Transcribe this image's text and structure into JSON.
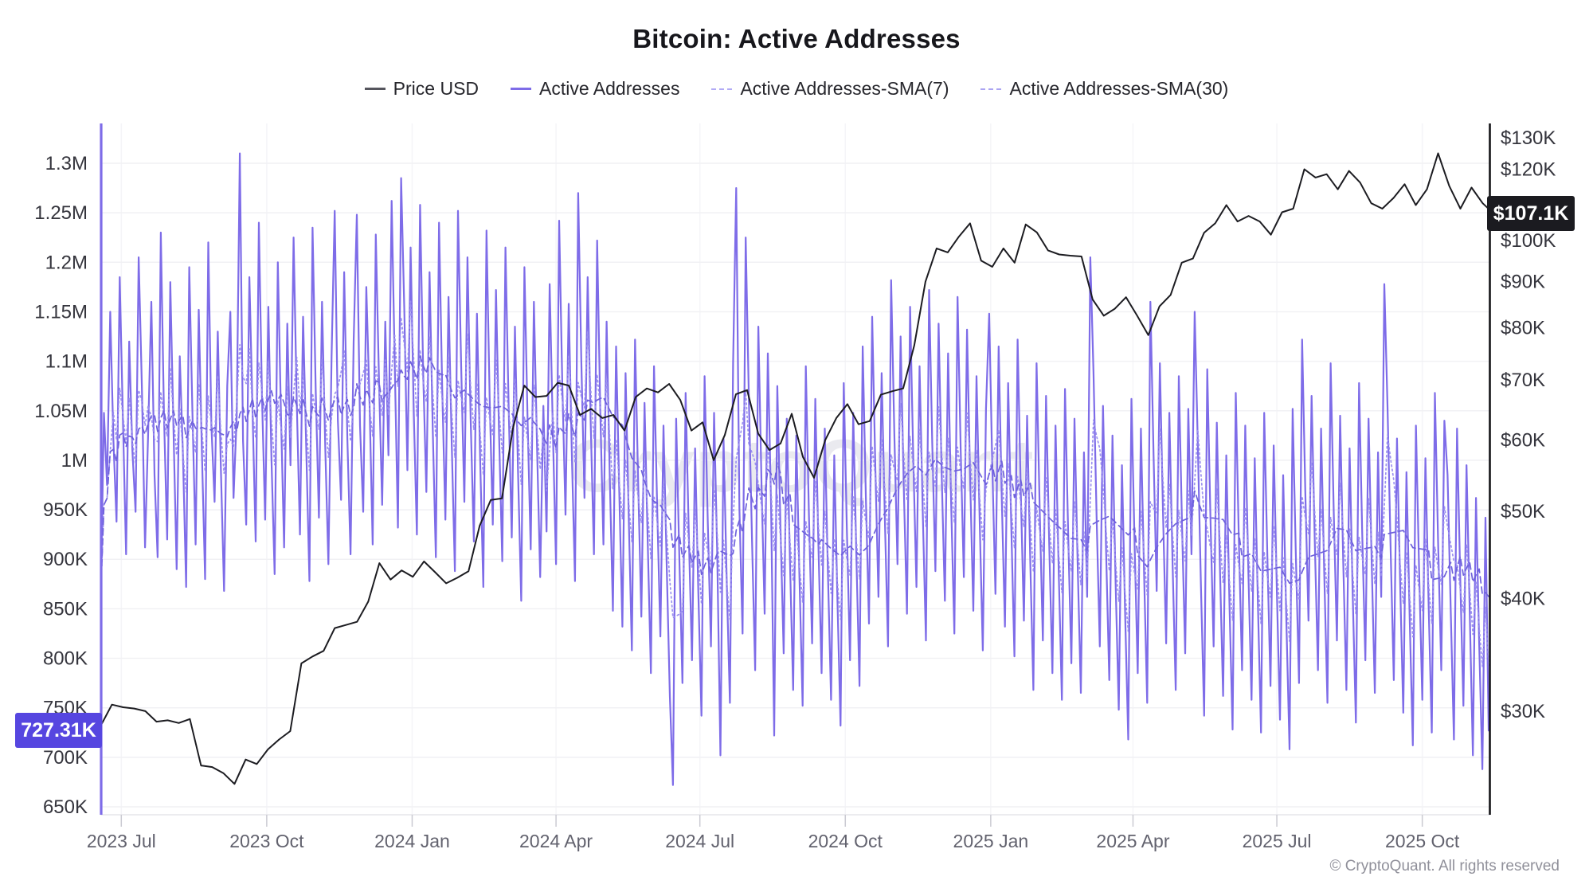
{
  "watermark": "CryptoQuant",
  "copyright": "© CryptoQuant. All rights reserved",
  "legend": {
    "items": [
      {
        "label": "Price USD",
        "swatch": "solid",
        "color": "#55555d"
      },
      {
        "label": "Active Addresses",
        "swatch": "solid",
        "color": "#7E6CE8"
      },
      {
        "label": "Active Addresses-SMA(7)",
        "swatch": "dashed",
        "color": "#b2abf5"
      },
      {
        "label": "Active Addresses-SMA(30)",
        "swatch": "dashed",
        "color": "#aba4f2"
      }
    ]
  },
  "annotations": {
    "left_axis_value": {
      "text": "727.31K",
      "bg": "#5646E0"
    },
    "right_axis_value": {
      "text": "$107.1K",
      "bg": "#1b1b20"
    }
  },
  "chart_data": {
    "type": "line",
    "title": "Bitcoin: Active Addresses",
    "grid": "horizontal-faint",
    "legend_position": "top",
    "x_axis": {
      "start_date": "2023-06-18",
      "end_date": "2025-11-14",
      "tick_labels": [
        "2023 Jul",
        "2023 Oct",
        "2024 Jan",
        "2024 Apr",
        "2024 Jul",
        "2024 Oct",
        "2025 Jan",
        "2025 Apr",
        "2025 Jul",
        "2025 Oct"
      ],
      "tick_days": [
        13,
        105,
        197,
        288,
        379,
        471,
        563,
        653,
        744,
        836
      ]
    },
    "left_axis": {
      "scale": "linear",
      "unit": "addresses",
      "tick_labels": [
        "650K",
        "700K",
        "750K",
        "800K",
        "850K",
        "900K",
        "950K",
        "1M",
        "1.05M",
        "1.1M",
        "1.15M",
        "1.2M",
        "1.25M",
        "1.3M"
      ],
      "tick_values_k": [
        650,
        700,
        750,
        800,
        850,
        900,
        950,
        1000,
        1050,
        1100,
        1150,
        1200,
        1250,
        1300
      ],
      "range_k": [
        650,
        1339
      ]
    },
    "right_axis": {
      "scale": "log",
      "unit": "USD",
      "tick_labels": [
        "$30K",
        "$40K",
        "$50K",
        "$60K",
        "$70K",
        "$80K",
        "$90K",
        "$100K",
        "$120K",
        "$130K"
      ],
      "tick_values_k": [
        30,
        40,
        50,
        60,
        70,
        80,
        90,
        100,
        120,
        130
      ]
    },
    "last_values": {
      "active_addresses_k": 727.31,
      "price_usd_k": 107.1
    },
    "series": [
      {
        "name": "Price USD",
        "axis": "right",
        "unit": "USD thousands",
        "color": "#1c1c21",
        "style": "solid",
        "x_start_day": 0,
        "x_day_step": 7.05,
        "values": [
          28.9,
          30.5,
          30.3,
          30.2,
          30.0,
          29.2,
          29.3,
          29.1,
          29.4,
          26.1,
          26.0,
          25.6,
          24.9,
          26.5,
          26.2,
          27.2,
          27.9,
          28.5,
          33.9,
          34.5,
          35.0,
          37.1,
          37.4,
          37.7,
          39.7,
          43.8,
          42.0,
          43.0,
          42.3,
          44.0,
          42.8,
          41.6,
          42.2,
          42.9,
          48.2,
          51.5,
          51.7,
          62.0,
          69.0,
          67.0,
          67.2,
          69.5,
          69.0,
          64.0,
          65.0,
          63.5,
          64.0,
          61.5,
          67.0,
          68.5,
          67.8,
          69.3,
          66.5,
          61.5,
          62.8,
          57.0,
          60.8,
          67.5,
          68.2,
          61.0,
          58.5,
          59.5,
          64.2,
          57.5,
          54.5,
          60.0,
          63.5,
          65.8,
          62.5,
          63.0,
          67.4,
          68.0,
          68.5,
          76.5,
          90.0,
          98.0,
          97.0,
          101.0,
          104.5,
          95.0,
          93.5,
          98.0,
          94.5,
          104.2,
          102.1,
          97.5,
          96.5,
          96.2,
          96.0,
          86.0,
          82.5,
          84.0,
          86.5,
          82.5,
          78.5,
          84.5,
          87.0,
          94.5,
          95.5,
          102.0,
          104.5,
          109.5,
          105.0,
          106.5,
          105.0,
          101.5,
          107.5,
          108.5,
          120.0,
          117.5,
          118.5,
          114.0,
          119.5,
          116.0,
          110.0,
          108.5,
          111.5,
          115.5,
          109.5,
          114.0,
          125.0,
          115.0,
          108.5,
          114.5,
          110.0,
          107.1
        ]
      },
      {
        "name": "Active Addresses",
        "axis": "left",
        "unit": "thousands",
        "color": "#7E6CE8",
        "style": "solid",
        "x_start_day": 0,
        "x_day_step": 2,
        "values": [
          862,
          1048,
          975,
          1150,
          1020,
          938,
          1185,
          1042,
          905,
          1120,
          1010,
          948,
          1205,
          1075,
          912,
          1028,
          1160,
          985,
          902,
          1230,
          1045,
          920,
          1180,
          1032,
          890,
          1105,
          1005,
          872,
          1195,
          1048,
          915,
          1152,
          1008,
          880,
          1220,
          1035,
          958,
          1130,
          992,
          868,
          1075,
          1150,
          962,
          1045,
          1310,
          1020,
          935,
          1185,
          1052,
          918,
          1240,
          1065,
          940,
          1155,
          1002,
          885,
          1200,
          1048,
          912,
          1138,
          995,
          1225,
          1058,
          925,
          1145,
          1012,
          878,
          1235,
          1070,
          942,
          1160,
          1015,
          895,
          1105,
          1252,
          1040,
          960,
          1190,
          1022,
          905,
          1120,
          1248,
          1035,
          948,
          1175,
          1060,
          915,
          1228,
          1082,
          955,
          1140,
          1005,
          1262,
          1098,
          932,
          1285,
          1152,
          990,
          1215,
          1048,
          925,
          1258,
          1085,
          968,
          1190,
          1032,
          902,
          1240,
          1072,
          940,
          1165,
          1018,
          888,
          1252,
          1095,
          958,
          1205,
          1042,
          918,
          1148,
          1002,
          872,
          1232,
          1065,
          935,
          1172,
          1025,
          898,
          1215,
          1058,
          922,
          1135,
          988,
          858,
          1195,
          1040,
          910,
          1160,
          1012,
          882,
          1055,
          928,
          1178,
          1030,
          895,
          1242,
          1075,
          945,
          1158,
          1008,
          878,
          1270,
          1102,
          962,
          1185,
          1035,
          905,
          1222,
          1052,
          915,
          1140,
          982,
          848,
          1115,
          968,
          832,
          1088,
          942,
          808,
          1122,
          975,
          842,
          1058,
          918,
          785,
          1095,
          952,
          822,
          1035,
          895,
          762,
          672,
          1042,
          902,
          775,
          1068,
          925,
          798,
          1012,
          868,
          742,
          1085,
          938,
          812,
          1048,
          905,
          702,
          1022,
          878,
          755,
          1098,
          1275,
          952,
          825,
          1225,
          1062,
          918,
          788,
          1135,
          975,
          845,
          1108,
          958,
          722,
          1075,
          932,
          805,
          1042,
          898,
          768,
          1025,
          882,
          752,
          1095,
          945,
          815,
          1062,
          915,
          785,
          1032,
          888,
          758,
          1005,
          862,
          732,
          1078,
          928,
          798,
          1048,
          902,
          772,
          1115,
          962,
          835,
          1145,
          992,
          862,
          1088,
          942,
          812,
          1182,
          1028,
          895,
          1125,
          972,
          845,
          1155,
          1002,
          872,
          1095,
          948,
          818,
          1172,
          1018,
          888,
          1138,
          985,
          858,
          1108,
          955,
          825,
          1165,
          1012,
          882,
          1132,
          978,
          848,
          1085,
          938,
          808,
          1052,
          1148,
          995,
          865,
          1115,
          962,
          832,
          1078,
          932,
          802,
          1122,
          968,
          838,
          1045,
          898,
          768,
          1098,
          948,
          818,
          1065,
          915,
          785,
          1035,
          888,
          758,
          1072,
          925,
          795,
          1042,
          895,
          765,
          1008,
          862,
          1205,
          1088,
          942,
          812,
          1055,
          908,
          778,
          1025,
          878,
          748,
          995,
          848,
          718,
          1062,
          915,
          785,
          1032,
          885,
          755,
          1160,
          1005,
          868,
          1098,
          945,
          815,
          1048,
          898,
          768,
          1085,
          935,
          805,
          1052,
          905,
          1150,
          1018,
          872,
          742,
          1092,
          942,
          812,
          1038,
          892,
          762,
          1005,
          858,
          728,
          1068,
          918,
          788,
          1035,
          888,
          758,
          1002,
          855,
          725,
          1048,
          902,
          772,
          1015,
          868,
          738,
          985,
          838,
          708,
          1052,
          905,
          775,
          1122,
          968,
          838,
          1065,
          918,
          788,
          1032,
          885,
          755,
          1098,
          948,
          818,
          1045,
          898,
          768,
          1012,
          865,
          735,
          1078,
          928,
          798,
          1042,
          895,
          765,
          1008,
          862,
          1178,
          1055,
          908,
          778,
          1022,
          875,
          745,
          988,
          842,
          712,
          1035,
          888,
          758,
          1002,
          855,
          725,
          1068,
          918,
          788,
          1040,
          985,
          848,
          718,
          1032,
          882,
          752,
          995,
          848,
          702,
          962,
          815,
          688,
          942,
          727
        ]
      },
      {
        "name": "Active Addresses-SMA(7)",
        "axis": "left",
        "unit": "thousands",
        "color": "#9B90F0",
        "style": "dotted",
        "derived_from": "Active Addresses",
        "sma_window_days": 7
      },
      {
        "name": "Active Addresses-SMA(30)",
        "axis": "left",
        "unit": "thousands",
        "color": "#6E61DB",
        "style": "dashed",
        "derived_from": "Active Addresses",
        "sma_window_days": 30
      }
    ]
  }
}
